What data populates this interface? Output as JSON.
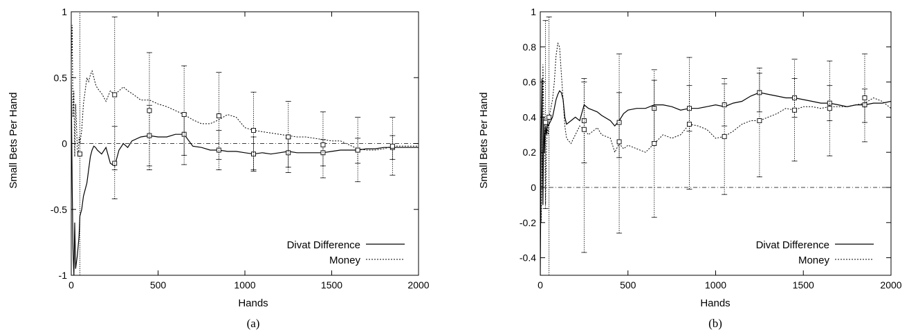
{
  "chart_data": [
    {
      "type": "line",
      "caption": "(a)",
      "xlabel": "Hands",
      "ylabel": "Small Bets Per Hand",
      "xlim": [
        0,
        2000
      ],
      "ylim": [
        -1,
        1
      ],
      "xticks": [
        "0",
        "500",
        "1000",
        "1500",
        "2000"
      ],
      "yticks": [
        "-1",
        "-0.5",
        "0",
        "0.5",
        "1"
      ],
      "legend_position": "bottom-right",
      "reference_line": 0,
      "series": [
        {
          "name": "Divat Difference",
          "style": "solid",
          "x": [
            0,
            5,
            10,
            15,
            20,
            25,
            30,
            35,
            40,
            45,
            50,
            60,
            70,
            80,
            90,
            100,
            110,
            120,
            130,
            140,
            150,
            175,
            200,
            225,
            250,
            275,
            300,
            325,
            350,
            400,
            450,
            500,
            550,
            600,
            650,
            700,
            750,
            800,
            850,
            900,
            950,
            1000,
            1050,
            1100,
            1150,
            1200,
            1250,
            1300,
            1350,
            1400,
            1450,
            1500,
            1550,
            1600,
            1650,
            1700,
            1750,
            1800,
            1850,
            1900,
            1950,
            2000
          ],
          "values": [
            0.45,
            -0.3,
            -0.8,
            -1.0,
            -0.6,
            -0.95,
            -0.9,
            -0.85,
            -0.78,
            -0.7,
            -0.55,
            -0.5,
            -0.4,
            -0.35,
            -0.3,
            -0.2,
            -0.1,
            -0.05,
            -0.02,
            -0.03,
            -0.05,
            -0.08,
            -0.03,
            -0.15,
            -0.17,
            -0.05,
            0.0,
            -0.03,
            0.02,
            0.05,
            0.06,
            0.05,
            0.05,
            0.07,
            0.07,
            -0.02,
            -0.03,
            -0.05,
            -0.05,
            -0.06,
            -0.06,
            -0.07,
            -0.08,
            -0.07,
            -0.08,
            -0.07,
            -0.06,
            -0.07,
            -0.07,
            -0.07,
            -0.07,
            -0.06,
            -0.05,
            -0.05,
            -0.05,
            -0.04,
            -0.04,
            -0.03,
            -0.03,
            -0.03,
            -0.03,
            -0.03
          ]
        },
        {
          "name": "Money",
          "style": "dotted",
          "x": [
            0,
            5,
            10,
            15,
            20,
            25,
            30,
            35,
            40,
            45,
            50,
            60,
            70,
            80,
            90,
            100,
            110,
            120,
            130,
            140,
            150,
            175,
            200,
            225,
            250,
            275,
            300,
            325,
            350,
            400,
            450,
            500,
            550,
            600,
            650,
            700,
            750,
            800,
            850,
            900,
            950,
            1000,
            1050,
            1100,
            1150,
            1200,
            1250,
            1300,
            1350,
            1400,
            1450,
            1500,
            1550,
            1600,
            1650,
            1700,
            1750,
            1800,
            1850,
            1900,
            1950,
            2000
          ],
          "values": [
            0.6,
            0.9,
            0.2,
            0.4,
            -0.1,
            0.3,
            0.15,
            -0.05,
            -0.1,
            0.05,
            0.0,
            0.1,
            0.3,
            0.4,
            0.5,
            0.47,
            0.52,
            0.55,
            0.5,
            0.45,
            0.42,
            0.38,
            0.32,
            0.4,
            0.37,
            0.4,
            0.43,
            0.4,
            0.38,
            0.33,
            0.33,
            0.3,
            0.28,
            0.25,
            0.22,
            0.18,
            0.15,
            0.15,
            0.18,
            0.22,
            0.2,
            0.12,
            0.1,
            0.09,
            0.08,
            0.07,
            0.06,
            0.05,
            0.05,
            0.04,
            0.03,
            0.02,
            0.02,
            -0.01,
            -0.04,
            -0.05,
            -0.05,
            -0.04,
            -0.02,
            -0.02,
            -0.02,
            -0.02
          ]
        }
      ],
      "error_bars": [
        {
          "x": 50,
          "y": -0.08,
          "low": -1.0,
          "high": 1.0
        },
        {
          "x": 250,
          "y": -0.15,
          "low": -0.42,
          "high": 0.13
        },
        {
          "x": 250,
          "y": 0.37,
          "low": -0.2,
          "high": 0.96
        },
        {
          "x": 450,
          "y": 0.06,
          "low": -0.17,
          "high": 0.29
        },
        {
          "x": 450,
          "y": 0.25,
          "low": -0.2,
          "high": 0.69
        },
        {
          "x": 650,
          "y": 0.07,
          "low": -0.09,
          "high": 0.23
        },
        {
          "x": 650,
          "y": 0.22,
          "low": -0.16,
          "high": 0.59
        },
        {
          "x": 850,
          "y": -0.05,
          "low": -0.2,
          "high": 0.1
        },
        {
          "x": 850,
          "y": 0.21,
          "low": -0.12,
          "high": 0.54
        },
        {
          "x": 1050,
          "y": -0.08,
          "low": -0.21,
          "high": 0.05
        },
        {
          "x": 1050,
          "y": 0.1,
          "low": -0.2,
          "high": 0.39
        },
        {
          "x": 1250,
          "y": -0.07,
          "low": -0.18,
          "high": 0.04
        },
        {
          "x": 1250,
          "y": 0.05,
          "low": -0.22,
          "high": 0.32
        },
        {
          "x": 1450,
          "y": -0.07,
          "low": -0.17,
          "high": 0.03
        },
        {
          "x": 1450,
          "y": -0.01,
          "low": -0.26,
          "high": 0.24
        },
        {
          "x": 1650,
          "y": -0.05,
          "low": -0.15,
          "high": 0.04
        },
        {
          "x": 1650,
          "y": -0.05,
          "low": -0.29,
          "high": 0.2
        },
        {
          "x": 1850,
          "y": -0.03,
          "low": -0.12,
          "high": 0.06
        },
        {
          "x": 1850,
          "y": -0.02,
          "low": -0.24,
          "high": 0.2
        }
      ]
    },
    {
      "type": "line",
      "caption": "(b)",
      "xlabel": "Hands",
      "ylabel": "Small Bets Per Hand",
      "xlim": [
        0,
        2000
      ],
      "ylim": [
        -0.5,
        1
      ],
      "xticks": [
        "0",
        "500",
        "1000",
        "1500",
        "2000"
      ],
      "yticks": [
        "-0.4",
        "-0.2",
        "0",
        "0.2",
        "0.4",
        "0.6",
        "0.8",
        "1"
      ],
      "legend_position": "bottom-right",
      "reference_line": 0,
      "series": [
        {
          "name": "Divat Difference",
          "style": "solid",
          "x": [
            0,
            5,
            10,
            15,
            20,
            25,
            30,
            35,
            40,
            45,
            50,
            60,
            70,
            80,
            90,
            100,
            110,
            120,
            130,
            140,
            150,
            175,
            200,
            225,
            250,
            275,
            300,
            325,
            350,
            400,
            425,
            450,
            475,
            500,
            550,
            600,
            650,
            700,
            750,
            800,
            850,
            900,
            950,
            1000,
            1050,
            1100,
            1150,
            1200,
            1250,
            1300,
            1350,
            1400,
            1450,
            1500,
            1550,
            1600,
            1650,
            1700,
            1750,
            1800,
            1850,
            1900,
            1950,
            2000
          ],
          "values": [
            -0.5,
            0.3,
            0.62,
            -0.1,
            0.4,
            0.2,
            0.35,
            0.3,
            0.37,
            0.35,
            0.36,
            0.38,
            0.4,
            0.45,
            0.5,
            0.53,
            0.55,
            0.54,
            0.5,
            0.4,
            0.36,
            0.38,
            0.4,
            0.38,
            0.47,
            0.45,
            0.44,
            0.43,
            0.41,
            0.38,
            0.35,
            0.38,
            0.42,
            0.44,
            0.45,
            0.45,
            0.47,
            0.47,
            0.46,
            0.44,
            0.45,
            0.45,
            0.46,
            0.47,
            0.46,
            0.48,
            0.49,
            0.52,
            0.54,
            0.53,
            0.52,
            0.51,
            0.51,
            0.5,
            0.49,
            0.48,
            0.48,
            0.47,
            0.46,
            0.47,
            0.47,
            0.48,
            0.48,
            0.49
          ]
        },
        {
          "name": "Money",
          "style": "dotted",
          "x": [
            0,
            5,
            10,
            15,
            20,
            25,
            30,
            35,
            40,
            45,
            50,
            60,
            70,
            80,
            90,
            100,
            110,
            120,
            130,
            140,
            150,
            175,
            200,
            225,
            250,
            275,
            300,
            325,
            350,
            400,
            425,
            450,
            475,
            500,
            550,
            600,
            650,
            700,
            750,
            800,
            850,
            900,
            950,
            1000,
            1050,
            1100,
            1150,
            1200,
            1250,
            1300,
            1350,
            1400,
            1450,
            1500,
            1550,
            1600,
            1650,
            1700,
            1750,
            1800,
            1850,
            1900,
            1950,
            2000
          ],
          "values": [
            0.4,
            -0.2,
            0.1,
            0.7,
            0.4,
            0.3,
            -0.1,
            0.2,
            0.35,
            0.3,
            0.4,
            0.45,
            0.5,
            0.6,
            0.75,
            0.82,
            0.8,
            0.65,
            0.5,
            0.35,
            0.28,
            0.25,
            0.3,
            0.35,
            0.33,
            0.3,
            0.32,
            0.34,
            0.3,
            0.28,
            0.2,
            0.25,
            0.22,
            0.24,
            0.22,
            0.2,
            0.25,
            0.3,
            0.28,
            0.3,
            0.36,
            0.35,
            0.33,
            0.28,
            0.29,
            0.32,
            0.36,
            0.38,
            0.38,
            0.4,
            0.42,
            0.45,
            0.44,
            0.46,
            0.46,
            0.45,
            0.46,
            0.46,
            0.46,
            0.47,
            0.48,
            0.51,
            0.49,
            0.45
          ]
        }
      ],
      "error_bars": [
        {
          "x": 30,
          "y": 0.37,
          "low": -0.12,
          "high": 0.95
        },
        {
          "x": 50,
          "y": 0.4,
          "low": -0.5,
          "high": 0.97
        },
        {
          "x": 250,
          "y": 0.38,
          "low": 0.14,
          "high": 0.62
        },
        {
          "x": 250,
          "y": 0.33,
          "low": -0.37,
          "high": 0.6
        },
        {
          "x": 450,
          "y": 0.37,
          "low": 0.17,
          "high": 0.54
        },
        {
          "x": 450,
          "y": 0.26,
          "low": -0.26,
          "high": 0.76
        },
        {
          "x": 650,
          "y": 0.45,
          "low": 0.26,
          "high": 0.61
        },
        {
          "x": 650,
          "y": 0.25,
          "low": -0.17,
          "high": 0.67
        },
        {
          "x": 850,
          "y": 0.45,
          "low": 0.32,
          "high": 0.58
        },
        {
          "x": 850,
          "y": 0.36,
          "low": -0.01,
          "high": 0.74
        },
        {
          "x": 1050,
          "y": 0.47,
          "low": 0.35,
          "high": 0.59
        },
        {
          "x": 1050,
          "y": 0.29,
          "low": -0.04,
          "high": 0.62
        },
        {
          "x": 1250,
          "y": 0.54,
          "low": 0.43,
          "high": 0.65
        },
        {
          "x": 1250,
          "y": 0.38,
          "low": 0.06,
          "high": 0.68
        },
        {
          "x": 1450,
          "y": 0.51,
          "low": 0.4,
          "high": 0.62
        },
        {
          "x": 1450,
          "y": 0.44,
          "low": 0.15,
          "high": 0.73
        },
        {
          "x": 1650,
          "y": 0.48,
          "low": 0.38,
          "high": 0.58
        },
        {
          "x": 1650,
          "y": 0.45,
          "low": 0.18,
          "high": 0.72
        },
        {
          "x": 1850,
          "y": 0.47,
          "low": 0.37,
          "high": 0.56
        },
        {
          "x": 1850,
          "y": 0.51,
          "low": 0.26,
          "high": 0.76
        }
      ]
    }
  ]
}
